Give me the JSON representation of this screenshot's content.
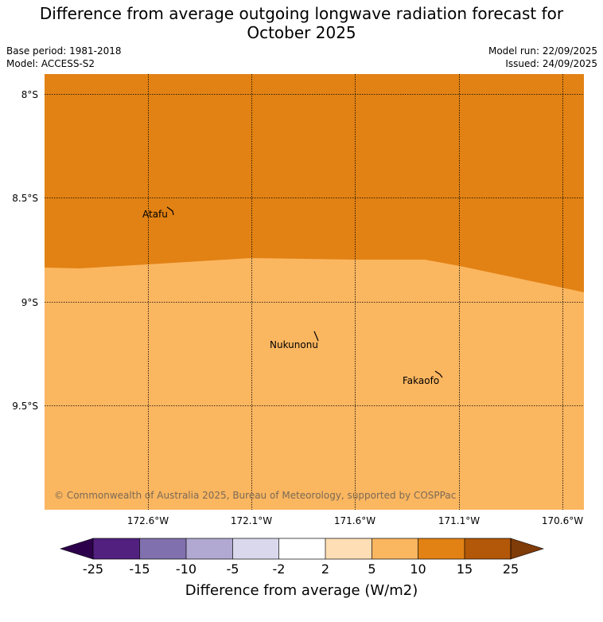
{
  "title_line1": "Difference from average outgoing longwave radiation forecast for",
  "title_line2": "October 2025",
  "base_period": "Base period: 1981-2018",
  "model": "Model: ACCESS-S2",
  "model_run": "Model run: 22/09/2025",
  "issued": "Issued: 24/09/2025",
  "lat_labels": [
    "8°S",
    "8.5°S",
    "9°S",
    "9.5°S"
  ],
  "lon_labels": [
    "172.6°W",
    "172.1°W",
    "171.6°W",
    "171.1°W",
    "170.6°W"
  ],
  "places": [
    "Atafu",
    "Nukunonu",
    "Fakaofo"
  ],
  "copyright": "© Commonwealth of Australia 2025, Bureau of Meteorology, supported by COSPPac",
  "colors": {
    "upper_region": "#e28214",
    "lower_region": "#fbb660"
  },
  "colorbar": {
    "ticks": [
      "-25",
      "-15",
      "-10",
      "-5",
      "-2",
      "2",
      "5",
      "10",
      "15",
      "25"
    ],
    "colors": [
      "#52207f",
      "#8070ad",
      "#b1a9d1",
      "#d9d8ec",
      "#ffffff",
      "#fedeb4",
      "#fbb660",
      "#e28214",
      "#b25808"
    ],
    "under_color": "#2d004b",
    "over_color": "#7f3b08",
    "label": "Difference from average (W/m2)"
  }
}
